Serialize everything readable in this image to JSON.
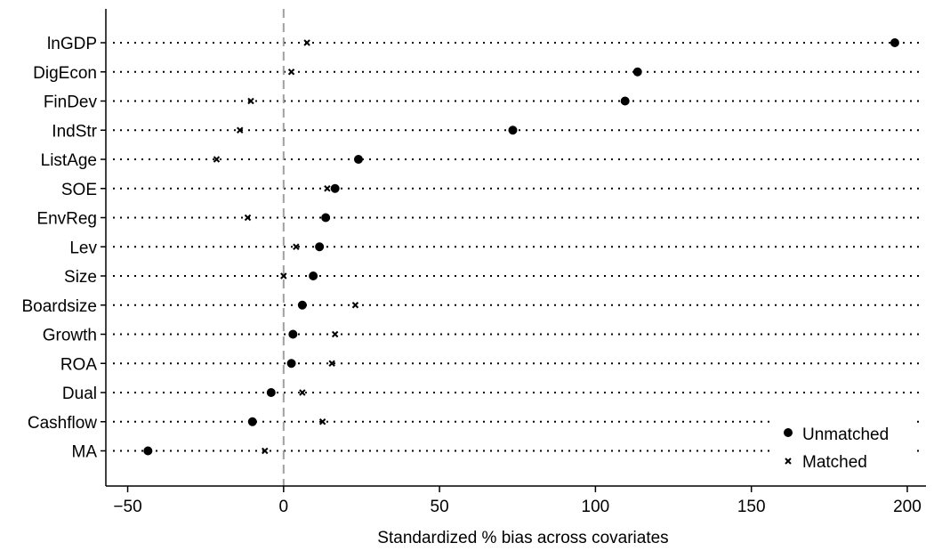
{
  "chart_data": {
    "type": "scatter",
    "title": "",
    "xlabel": "Standardized % bias across covariates",
    "ylabel": "",
    "xlim": [
      -57,
      206
    ],
    "xticks": [
      -50,
      0,
      50,
      100,
      150,
      200
    ],
    "xtick_labels": [
      "−50",
      "0",
      "50",
      "100",
      "150",
      "200"
    ],
    "reference_line": {
      "x": 0,
      "style": "dashed",
      "color": "#a0a0a0"
    },
    "grid": "dotted horizontal guide per category",
    "legend_position": "bottom-right",
    "categories": [
      "lnGDP",
      "DigEcon",
      "FinDev",
      "IndStr",
      "ListAge",
      "SOE",
      "EnvReg",
      "Lev",
      "Size",
      "Boardsize",
      "Growth",
      "ROA",
      "Dual",
      "Cashflow",
      "MA"
    ],
    "series": [
      {
        "name": "Unmatched",
        "marker": "circle",
        "color": "#000000",
        "values": [
          196.0,
          113.5,
          109.5,
          73.5,
          24.0,
          16.5,
          13.5,
          11.5,
          9.5,
          6.0,
          3.0,
          2.5,
          -4.0,
          -10.0,
          -43.5
        ]
      },
      {
        "name": "Matched",
        "marker": "x",
        "color": "#000000",
        "values": [
          7.5,
          2.5,
          -10.5,
          -14.0,
          -21.5,
          14.0,
          -11.5,
          4.0,
          0.0,
          23.0,
          16.5,
          15.5,
          6.0,
          12.5,
          -6.0
        ]
      }
    ]
  }
}
